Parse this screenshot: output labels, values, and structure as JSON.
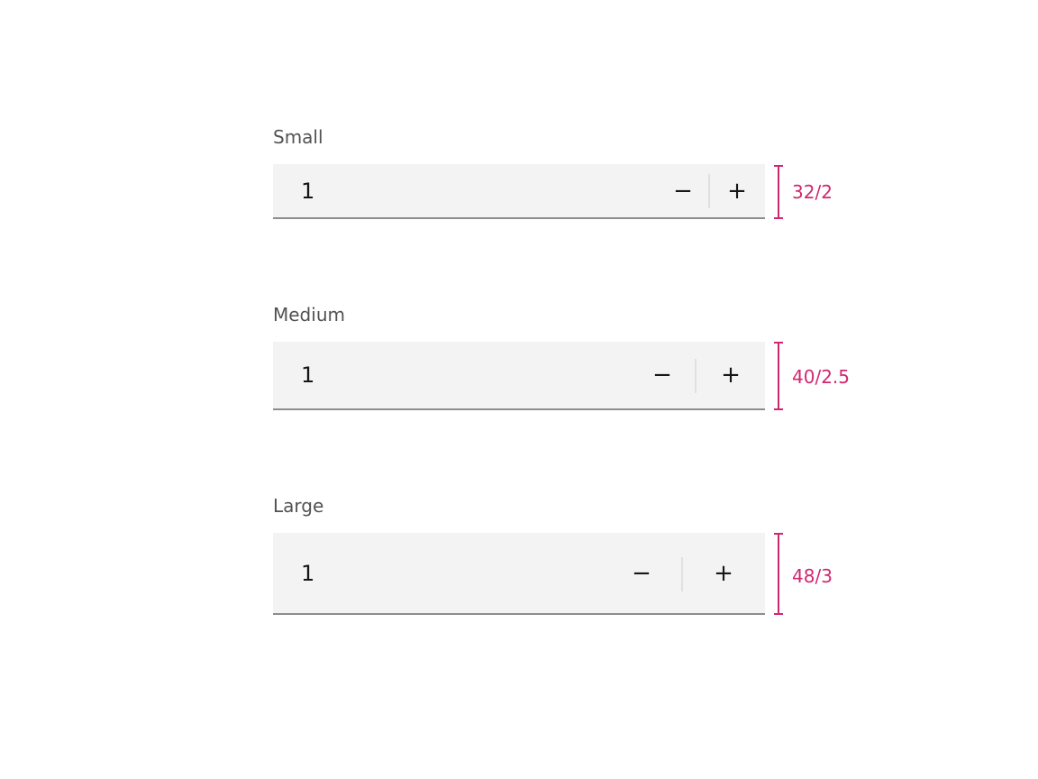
{
  "steppers": [
    {
      "label": "Small",
      "value": "1",
      "decrement": "−",
      "increment": "+",
      "spec": "32/2"
    },
    {
      "label": "Medium",
      "value": "1",
      "decrement": "−",
      "increment": "+",
      "spec": "40/2.5"
    },
    {
      "label": "Large",
      "value": "1",
      "decrement": "−",
      "increment": "+",
      "spec": "48/3"
    }
  ],
  "colors": {
    "accent": "#d12771",
    "field": "#f3f3f3",
    "border": "#8d8d8d"
  }
}
